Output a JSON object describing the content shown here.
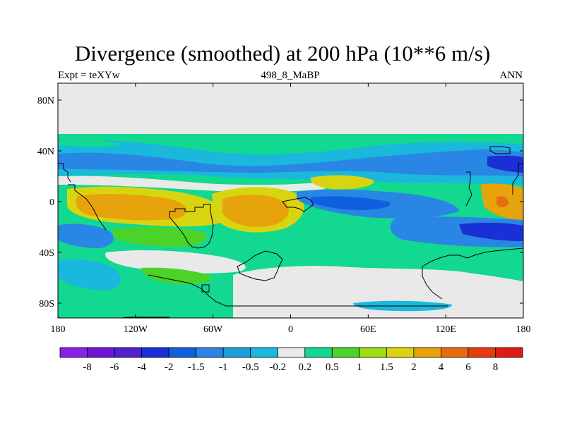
{
  "title": "Divergence (smoothed) at 200 hPa (10**6 m/s)",
  "subtitle_left": "Expt = teXYw",
  "subtitle_center": "498_8_MaBP",
  "subtitle_right": "ANN",
  "map": {
    "lat_ticks": [
      "80N",
      "40N",
      "0",
      "40S",
      "80S"
    ],
    "lon_ticks": [
      "180",
      "120W",
      "60W",
      "0",
      "60E",
      "120E",
      "180"
    ]
  },
  "colorbar": {
    "colors": [
      "#8a21e8",
      "#6e16d8",
      "#4f20d4",
      "#1a2fd6",
      "#0f5fe0",
      "#2a86e4",
      "#1e9ed8",
      "#19b8dc",
      "#e9e9e9",
      "#12d890",
      "#4cd32a",
      "#9fdd16",
      "#d8d510",
      "#e7a30c",
      "#e86c10",
      "#e63c10",
      "#e11a15"
    ],
    "labels": [
      "-8",
      "-6",
      "-4",
      "-2",
      "-1.5",
      "-1",
      "-0.5",
      "-0.2",
      "0.2",
      "0.5",
      "1",
      "1.5",
      "2",
      "4",
      "6",
      "8"
    ]
  }
}
